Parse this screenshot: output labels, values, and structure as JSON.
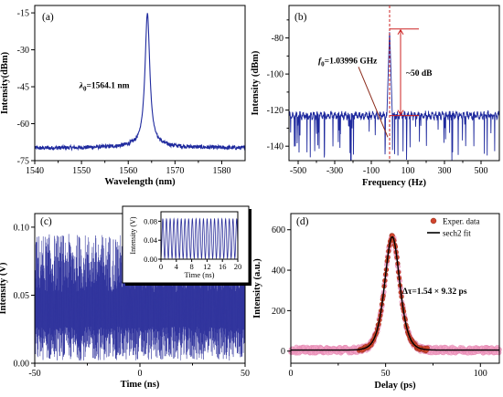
{
  "chart_data": [
    {
      "panel_label": "(a)",
      "type": "line",
      "xlabel": "Wavelength (nm)",
      "ylabel": "Intensity(dBm)",
      "xlim": [
        1540,
        1585
      ],
      "ylim": [
        -75,
        -12
      ],
      "xticks": [
        1540,
        1550,
        1560,
        1570,
        1580
      ],
      "yticks": [
        -15,
        -30,
        -45,
        -60,
        -75
      ],
      "annotation": {
        "symbol": "λ",
        "subscript": "0",
        "text": "=1564.1 nm",
        "x": 1556.0,
        "y": -45.6
      },
      "color": "#1f2a9e",
      "peak": {
        "x": 1564.1,
        "y": -16.5
      },
      "noise_floor": -70,
      "x": [
        1540,
        1548,
        1554,
        1558,
        1560,
        1561.5,
        1562.5,
        1563.3,
        1563.8,
        1564.1,
        1564.5,
        1565.0,
        1565.8,
        1567,
        1568.5,
        1571,
        1575,
        1580,
        1585
      ],
      "y": [
        -70,
        -69.5,
        -68.5,
        -66.5,
        -64,
        -60.5,
        -55,
        -42,
        -28,
        -16.5,
        -26,
        -44,
        -57,
        -63,
        -66.5,
        -68.5,
        -69.8,
        -70,
        -70.2
      ]
    },
    {
      "panel_label": "(b)",
      "type": "line",
      "xlabel": "Frequency (Hz)",
      "ylabel": "Intensity (dBm)",
      "xlim": [
        -550,
        600
      ],
      "ylim": [
        -148,
        -62
      ],
      "xticks": [
        -500,
        -300,
        -100,
        100,
        300,
        500
      ],
      "yticks": [
        -80,
        -100,
        -120,
        -140
      ],
      "annotation_freq": {
        "prefix": "f",
        "subscript": "0",
        "text": "=1.03996 GHz"
      },
      "annotation_snr": "~50 dB",
      "color": "#1f2a9e",
      "peak": {
        "x": 0,
        "y": -75
      },
      "noise_floor": -123,
      "x": [
        -550,
        -450,
        -350,
        -250,
        -150,
        -80,
        -30,
        -12,
        -4,
        0,
        4,
        12,
        30,
        80,
        150,
        250,
        350,
        450,
        550,
        600
      ],
      "y": [
        -124,
        -123,
        -124,
        -122,
        -121,
        -122,
        -121,
        -115,
        -90,
        -75,
        -92,
        -117,
        -121,
        -122,
        -121,
        -123,
        -122,
        -124,
        -122,
        -123
      ]
    },
    {
      "panel_label": "(c)",
      "type": "line",
      "xlabel": "Time (ns)",
      "ylabel": "Intensity (V)",
      "xlim": [
        -50,
        50
      ],
      "ylim": [
        0,
        0.11
      ],
      "xticks": [
        -50,
        0,
        50
      ],
      "yticks": [
        0.0,
        0.05,
        0.1
      ],
      "ytick_labels": [
        "0.00",
        "0.05",
        "0.10"
      ],
      "color": "#2b2f9b",
      "envelope_max": 0.095,
      "envelope_min": 0.002,
      "inset": {
        "xlabel": "Time (ns)",
        "ylabel": "Intensity (V)",
        "xlim": [
          0,
          20
        ],
        "ylim": [
          0,
          0.1
        ],
        "xticks": [
          0,
          4,
          8,
          12,
          16,
          20
        ],
        "yticks": [
          0.0,
          0.04,
          0.08
        ],
        "ytick_labels": [
          "0.00",
          "0.04",
          "0.08"
        ],
        "period_ns": 0.9616,
        "amplitude_max": 0.085,
        "amplitude_min": 0.002
      }
    },
    {
      "panel_label": "(d)",
      "type": "scatter",
      "xlabel": "Delay (ps)",
      "ylabel": "Intensity (a.u.)",
      "xlim": [
        0,
        110
      ],
      "ylim": [
        -60,
        680
      ],
      "xticks": [
        0,
        50,
        100
      ],
      "yticks": [
        0,
        200,
        400,
        600
      ],
      "legend": {
        "placement": "top-right",
        "entries": [
          "Exper. data",
          "sech2 fit"
        ]
      },
      "annotation": "Δτ=1.54 × 9.32 ps",
      "series": [
        {
          "name": "Exper. data",
          "color": "#d0452e"
        },
        {
          "name": "sech2 fit",
          "color": "#000000"
        }
      ],
      "fit": {
        "center": 53.5,
        "peak": 560,
        "width_ps": 9.32,
        "baseline": 5
      }
    }
  ]
}
